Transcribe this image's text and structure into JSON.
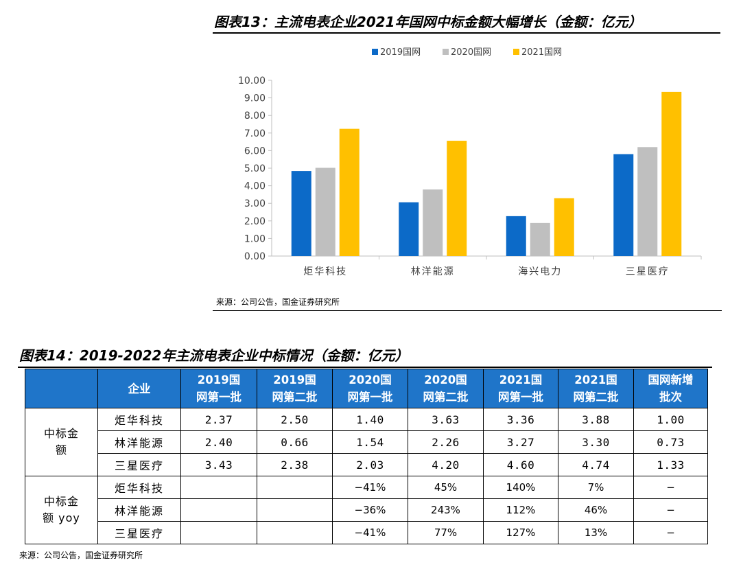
{
  "fig13": {
    "title": "图表13：主流电表企业2021年国网中标金额大幅增长（金额：亿元）",
    "source": "来源：公司公告，国金证券研究所"
  },
  "chart_data": {
    "type": "bar",
    "categories": [
      "炬华科技",
      "林洋能源",
      "海兴电力",
      "三星医疗"
    ],
    "series": [
      {
        "name": "2019国网",
        "color": "#0c6ac8",
        "values": [
          4.84,
          3.06,
          2.27,
          5.8
        ]
      },
      {
        "name": "2020国网",
        "color": "#bfbfbf",
        "values": [
          5.02,
          3.79,
          1.88,
          6.2
        ]
      },
      {
        "name": "2021国网",
        "color": "#ffc000",
        "values": [
          7.24,
          6.56,
          3.29,
          9.34
        ]
      }
    ],
    "title": "",
    "xlabel": "",
    "ylabel": "",
    "ylim": [
      0,
      10
    ],
    "yticks": [
      "0.00",
      "1.00",
      "2.00",
      "3.00",
      "4.00",
      "5.00",
      "6.00",
      "7.00",
      "8.00",
      "9.00",
      "10.00"
    ],
    "legend": "top",
    "grid": false
  },
  "fig14": {
    "title": "图表14：2019-2022年主流电表企业中标情况（金额：亿元）",
    "source": "来源：公司公告，国金证券研究所",
    "header": {
      "company": "企业",
      "cols": [
        [
          "2019国",
          "网第一批"
        ],
        [
          "2019国",
          "网第二批"
        ],
        [
          "2020国",
          "网第一批"
        ],
        [
          "2020国",
          "网第二批"
        ],
        [
          "2021国",
          "网第一批"
        ],
        [
          "2021国",
          "网第二批"
        ],
        [
          "国网新增",
          "批次"
        ]
      ]
    },
    "groups": [
      {
        "label": [
          "中标金",
          "额"
        ],
        "rows": [
          {
            "company": "炬华科技",
            "values": [
              "2.37",
              "2.50",
              "1.40",
              "3.63",
              "3.36",
              "3.88",
              "1.00"
            ]
          },
          {
            "company": "林洋能源",
            "values": [
              "2.40",
              "0.66",
              "1.54",
              "2.26",
              "3.27",
              "3.30",
              "0.73"
            ]
          },
          {
            "company": "三星医疗",
            "values": [
              "3.43",
              "2.38",
              "2.03",
              "4.20",
              "4.60",
              "4.74",
              "1.33"
            ]
          }
        ]
      },
      {
        "label": [
          "中标金",
          "额 yoy"
        ],
        "rows": [
          {
            "company": "炬华科技",
            "values": [
              "",
              "",
              "−41%",
              "45%",
              "140%",
              "7%",
              "−"
            ]
          },
          {
            "company": "林洋能源",
            "values": [
              "",
              "",
              "−36%",
              "243%",
              "112%",
              "46%",
              "−"
            ]
          },
          {
            "company": "三星医疗",
            "values": [
              "",
              "",
              "−41%",
              "77%",
              "127%",
              "13%",
              "−"
            ]
          }
        ]
      }
    ]
  }
}
